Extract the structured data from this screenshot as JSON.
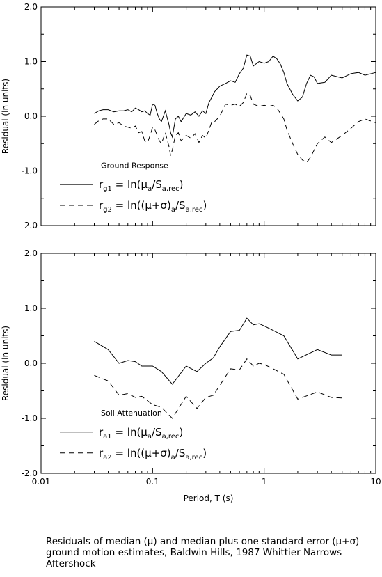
{
  "caption": "Residuals of median (μ) and median plus one standard error (μ+σ) ground motion estimates, Baldwin Hills, 1987 Whittier Narrows Aftershock",
  "x_ticks": [
    "0.01",
    "0.1",
    "1",
    "10"
  ],
  "y_ticks": [
    "2.0",
    "1.0",
    "0.0",
    "-1.0",
    "-2.0"
  ],
  "chart_data": [
    {
      "type": "line",
      "xlabel": "",
      "ylabel": "Residual (ln units)",
      "xscale": "log",
      "xlim": [
        0.01,
        10
      ],
      "ylim": [
        -2,
        2
      ],
      "grid": false,
      "legend": {
        "title": "Ground Response",
        "placement": "lower-left",
        "entries": [
          {
            "style": "solid",
            "sym": "r",
            "sub": "g1",
            "eq": "= ln(μ",
            "sub2": "a",
            "mid": "/S",
            "sub3": "a,rec",
            "end": ")"
          },
          {
            "style": "dashed",
            "sym": "r",
            "sub": "g2",
            "eq": "= ln((μ+σ)",
            "sub2": "a",
            "mid": "/S",
            "sub3": "a,rec",
            "end": ")"
          }
        ]
      },
      "series": [
        {
          "style": "solid",
          "x": [
            0.03,
            0.033,
            0.036,
            0.04,
            0.045,
            0.05,
            0.055,
            0.06,
            0.065,
            0.07,
            0.075,
            0.08,
            0.085,
            0.09,
            0.095,
            0.1,
            0.105,
            0.11,
            0.115,
            0.12,
            0.13,
            0.14,
            0.145,
            0.15,
            0.16,
            0.17,
            0.18,
            0.2,
            0.22,
            0.24,
            0.26,
            0.28,
            0.3,
            0.32,
            0.34,
            0.36,
            0.4,
            0.45,
            0.5,
            0.55,
            0.6,
            0.65,
            0.7,
            0.75,
            0.8,
            0.9,
            1.0,
            1.1,
            1.2,
            1.3,
            1.4,
            1.5,
            1.6,
            1.8,
            2.0,
            2.2,
            2.4,
            2.6,
            2.8,
            3.0,
            3.5,
            4.0,
            5.0,
            6.0,
            7.0,
            8.0,
            10.0
          ],
          "y": [
            0.05,
            0.1,
            0.12,
            0.12,
            0.08,
            0.1,
            0.1,
            0.12,
            0.08,
            0.15,
            0.12,
            0.08,
            0.1,
            0.05,
            0.02,
            0.22,
            0.2,
            0.05,
            -0.05,
            -0.1,
            0.1,
            -0.15,
            -0.3,
            -0.38,
            -0.05,
            0.0,
            -0.1,
            0.05,
            0.02,
            0.08,
            0.0,
            0.1,
            0.05,
            0.25,
            0.35,
            0.45,
            0.55,
            0.6,
            0.65,
            0.62,
            0.78,
            0.88,
            1.12,
            1.1,
            0.92,
            1.0,
            0.97,
            1.0,
            1.1,
            1.05,
            0.95,
            0.8,
            0.6,
            0.4,
            0.28,
            0.35,
            0.6,
            0.75,
            0.72,
            0.6,
            0.62,
            0.75,
            0.7,
            0.78,
            0.8,
            0.75,
            0.8
          ]
        },
        {
          "style": "dashed",
          "x": [
            0.03,
            0.033,
            0.036,
            0.04,
            0.045,
            0.05,
            0.055,
            0.06,
            0.065,
            0.07,
            0.075,
            0.08,
            0.085,
            0.09,
            0.095,
            0.1,
            0.105,
            0.11,
            0.115,
            0.12,
            0.13,
            0.14,
            0.145,
            0.15,
            0.16,
            0.17,
            0.18,
            0.2,
            0.22,
            0.24,
            0.26,
            0.28,
            0.3,
            0.32,
            0.34,
            0.36,
            0.4,
            0.45,
            0.5,
            0.55,
            0.6,
            0.65,
            0.7,
            0.75,
            0.8,
            0.9,
            1.0,
            1.1,
            1.2,
            1.3,
            1.4,
            1.5,
            1.6,
            1.8,
            2.0,
            2.2,
            2.4,
            2.6,
            2.8,
            3.0,
            3.5,
            4.0,
            5.0,
            6.0,
            7.0,
            8.0,
            10.0
          ],
          "y": [
            -0.15,
            -0.08,
            -0.05,
            -0.05,
            -0.15,
            -0.12,
            -0.18,
            -0.2,
            -0.22,
            -0.18,
            -0.3,
            -0.28,
            -0.45,
            -0.48,
            -0.35,
            -0.2,
            -0.25,
            -0.35,
            -0.45,
            -0.5,
            -0.3,
            -0.55,
            -0.72,
            -0.62,
            -0.35,
            -0.3,
            -0.45,
            -0.35,
            -0.4,
            -0.32,
            -0.48,
            -0.35,
            -0.4,
            -0.25,
            -0.1,
            -0.1,
            0.0,
            0.22,
            0.2,
            0.22,
            0.18,
            0.25,
            0.42,
            0.38,
            0.22,
            0.18,
            0.2,
            0.18,
            0.2,
            0.15,
            0.05,
            -0.05,
            -0.25,
            -0.5,
            -0.7,
            -0.8,
            -0.85,
            -0.75,
            -0.62,
            -0.5,
            -0.38,
            -0.48,
            -0.35,
            -0.22,
            -0.1,
            -0.05,
            -0.12
          ]
        }
      ]
    },
    {
      "type": "line",
      "xlabel": "Period, T (s)",
      "ylabel": "Residual (ln units)",
      "xscale": "log",
      "xlim": [
        0.01,
        10
      ],
      "ylim": [
        -2,
        2
      ],
      "grid": false,
      "legend": {
        "title": "Soil Attenuation",
        "placement": "lower-left",
        "entries": [
          {
            "style": "solid",
            "sym": "r",
            "sub": "a1",
            "eq": "= ln(μ",
            "sub2": "a",
            "mid": "/S",
            "sub3": "a,rec",
            "end": ")"
          },
          {
            "style": "dashed",
            "sym": "r",
            "sub": "a2",
            "eq": "= ln((μ+σ)",
            "sub2": "a",
            "mid": "/S",
            "sub3": "a,rec",
            "end": ")"
          }
        ]
      },
      "series": [
        {
          "style": "solid",
          "x": [
            0.03,
            0.04,
            0.05,
            0.06,
            0.07,
            0.08,
            0.1,
            0.12,
            0.15,
            0.2,
            0.25,
            0.3,
            0.35,
            0.4,
            0.5,
            0.6,
            0.7,
            0.8,
            0.9,
            1.0,
            1.2,
            1.5,
            2.0,
            3.0,
            4.0,
            5.0
          ],
          "y": [
            0.4,
            0.25,
            0.0,
            0.05,
            0.03,
            -0.05,
            -0.05,
            -0.15,
            -0.38,
            -0.05,
            -0.15,
            0.0,
            0.1,
            0.3,
            0.58,
            0.6,
            0.82,
            0.7,
            0.72,
            0.68,
            0.6,
            0.5,
            0.08,
            0.25,
            0.15,
            0.15
          ]
        },
        {
          "style": "dashed",
          "x": [
            0.03,
            0.04,
            0.05,
            0.06,
            0.07,
            0.08,
            0.1,
            0.12,
            0.15,
            0.2,
            0.25,
            0.3,
            0.35,
            0.4,
            0.5,
            0.6,
            0.7,
            0.8,
            0.9,
            1.0,
            1.2,
            1.5,
            2.0,
            3.0,
            4.0,
            5.0
          ],
          "y": [
            -0.22,
            -0.32,
            -0.58,
            -0.55,
            -0.62,
            -0.6,
            -0.75,
            -0.8,
            -1.0,
            -0.6,
            -0.82,
            -0.62,
            -0.58,
            -0.4,
            -0.1,
            -0.12,
            0.08,
            -0.05,
            0.0,
            -0.02,
            -0.1,
            -0.2,
            -0.65,
            -0.52,
            -0.62,
            -0.63
          ]
        }
      ]
    }
  ]
}
